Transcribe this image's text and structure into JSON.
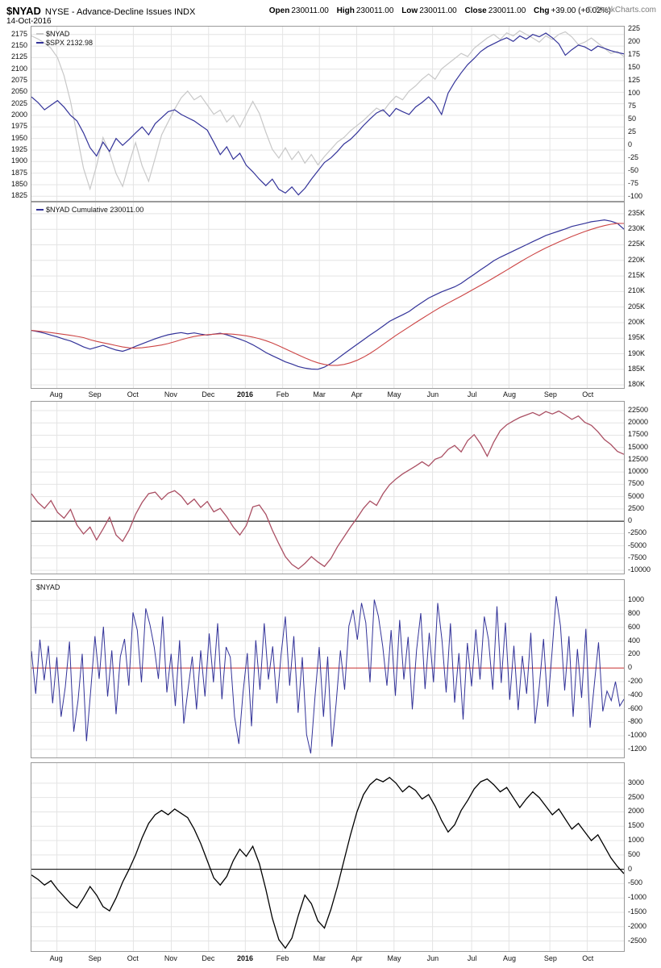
{
  "header": {
    "symbol": "$NYAD",
    "description": "NYSE - Advance-Decline Issues INDX",
    "date": "14-Oct-2016",
    "copyright": "© StockCharts.com",
    "quote": {
      "open_label": "Open",
      "open": "230011.00",
      "high_label": "High",
      "high": "230011.00",
      "low_label": "Low",
      "low": "230011.00",
      "close_label": "Close",
      "close": "230011.00",
      "chg_label": "Chg",
      "chg": "+39.00 (+0.02%)"
    }
  },
  "x_axis": {
    "labels": [
      {
        "t": "Aug"
      },
      {
        "t": "Sep"
      },
      {
        "t": "Oct"
      },
      {
        "t": "Nov"
      },
      {
        "t": "Dec"
      },
      {
        "t": "2016",
        "bold": true
      },
      {
        "t": "Feb"
      },
      {
        "t": "Mar"
      },
      {
        "t": "Apr"
      },
      {
        "t": "May"
      },
      {
        "t": "Jun"
      },
      {
        "t": "Jul"
      },
      {
        "t": "Aug"
      },
      {
        "t": "Sep"
      },
      {
        "t": "Oct"
      }
    ],
    "fractions": [
      0.043,
      0.108,
      0.172,
      0.236,
      0.299,
      0.361,
      0.424,
      0.486,
      0.549,
      0.612,
      0.677,
      0.743,
      0.806,
      0.875,
      0.938
    ]
  },
  "chart_data": [
    {
      "name": "price-overlay",
      "type": "line",
      "legend": [
        {
          "label": "$NYAD",
          "color": "#c8c8c8"
        },
        {
          "label": "$SPX 2132.98",
          "color": "#333399"
        }
      ],
      "axes": {
        "left": {
          "min": 1815,
          "max": 2192,
          "grid": true,
          "tick_values": [
            2175,
            2150,
            2125,
            2100,
            2075,
            2050,
            2025,
            2000,
            1975,
            1950,
            1925,
            1900,
            1875,
            1850,
            1825
          ],
          "tick_labels": [
            "2175",
            "2150",
            "2125",
            "2100",
            "2075",
            "2050",
            "2025",
            "2000",
            "1975",
            "1950",
            "1925",
            "1900",
            "1875",
            "1850",
            "1825"
          ]
        },
        "right": {
          "min": -108,
          "max": 230,
          "grid": false,
          "tick_values": [
            225,
            200,
            175,
            150,
            125,
            100,
            75,
            50,
            25,
            0,
            -25,
            -50,
            -75,
            -100
          ],
          "tick_labels": [
            "225",
            "200",
            "175",
            "150",
            "125",
            "100",
            "75",
            "50",
            "25",
            "0",
            "-25",
            "-50",
            "-75",
            "-100"
          ]
        }
      },
      "hlines": [],
      "series": [
        {
          "name": "NYAD",
          "axis": "right",
          "color": "#c8c8c8",
          "width": 1.2,
          "values": [
            212,
            206,
            198,
            188,
            170,
            135,
            85,
            20,
            -45,
            -85,
            -40,
            15,
            -15,
            -55,
            -80,
            -35,
            5,
            -40,
            -70,
            -25,
            20,
            45,
            70,
            92,
            105,
            88,
            96,
            78,
            60,
            68,
            45,
            58,
            35,
            60,
            85,
            62,
            25,
            -8,
            -25,
            -5,
            -28,
            -12,
            -35,
            -18,
            -38,
            -22,
            -8,
            6,
            15,
            28,
            38,
            48,
            60,
            72,
            65,
            82,
            95,
            88,
            105,
            115,
            128,
            138,
            128,
            148,
            158,
            168,
            178,
            172,
            188,
            198,
            208,
            215,
            205,
            218,
            212,
            222,
            215,
            208,
            200,
            212,
            205,
            215,
            220,
            210,
            195,
            200,
            208,
            198,
            188,
            178,
            182,
            172
          ]
        },
        {
          "name": "SPX",
          "axis": "left",
          "color": "#333399",
          "width": 1.2,
          "values": [
            2040,
            2028,
            2012,
            2022,
            2032,
            2018,
            2000,
            1988,
            1962,
            1930,
            1912,
            1942,
            1922,
            1950,
            1935,
            1948,
            1962,
            1975,
            1958,
            1982,
            1995,
            2008,
            2012,
            2002,
            1995,
            1988,
            1978,
            1968,
            1942,
            1915,
            1932,
            1905,
            1918,
            1892,
            1878,
            1862,
            1848,
            1862,
            1840,
            1832,
            1845,
            1828,
            1842,
            1862,
            1880,
            1898,
            1908,
            1922,
            1938,
            1948,
            1962,
            1978,
            1992,
            2005,
            2012,
            1998,
            2015,
            2008,
            2002,
            2018,
            2028,
            2040,
            2025,
            2002,
            2048,
            2072,
            2092,
            2110,
            2123,
            2138,
            2148,
            2155,
            2162,
            2168,
            2160,
            2172,
            2165,
            2175,
            2170,
            2178,
            2168,
            2155,
            2130,
            2142,
            2152,
            2148,
            2140,
            2150,
            2145,
            2140,
            2136,
            2133
          ]
        }
      ]
    },
    {
      "name": "nyad-cumulative",
      "type": "line",
      "legend": [
        {
          "label": "$NYAD Cumulative 230011.00",
          "color": "#333399"
        }
      ],
      "axes": {
        "right": {
          "min": 179000,
          "max": 238600,
          "grid": true,
          "tick_values": [
            235000,
            230000,
            225000,
            220000,
            215000,
            210000,
            205000,
            200000,
            195000,
            190000,
            185000,
            180000
          ],
          "tick_labels": [
            "235K",
            "230K",
            "225K",
            "220K",
            "215K",
            "210K",
            "205K",
            "200K",
            "195K",
            "190K",
            "185K",
            "180K"
          ]
        }
      },
      "hlines": [],
      "series": [
        {
          "name": "cumulative",
          "axis": "right",
          "color": "#333399",
          "width": 1.2,
          "values": [
            197500,
            197100,
            196600,
            196000,
            195400,
            194700,
            194100,
            193200,
            192200,
            191500,
            192100,
            192700,
            191900,
            191200,
            190800,
            191500,
            192400,
            193200,
            194000,
            194800,
            195500,
            196100,
            196500,
            196800,
            196400,
            196700,
            196300,
            196000,
            196300,
            196600,
            196100,
            195400,
            194700,
            193900,
            192900,
            191700,
            190400,
            189400,
            188400,
            187400,
            186700,
            185900,
            185400,
            185100,
            185000,
            185700,
            186900,
            188400,
            190000,
            191500,
            193000,
            194500,
            196000,
            197400,
            198900,
            200400,
            201500,
            202500,
            203600,
            205100,
            206500,
            207900,
            208900,
            209900,
            210700,
            211500,
            212600,
            214100,
            215500,
            217000,
            218400,
            219900,
            221000,
            222000,
            223000,
            224000,
            225000,
            226000,
            227000,
            228000,
            228700,
            229400,
            230100,
            230900,
            231400,
            231900,
            232400,
            232700,
            233000,
            232600,
            231900,
            230011
          ]
        },
        {
          "name": "cumulative-ma",
          "axis": "right",
          "color": "#cc4444",
          "width": 1.1,
          "derived": "sma",
          "window": 9,
          "source": 0
        }
      ]
    },
    {
      "name": "cumulative-oscillator",
      "type": "line",
      "axes": {
        "right": {
          "min": -10650,
          "max": 24300,
          "grid": true,
          "tick_values": [
            22500,
            20000,
            17500,
            15000,
            12500,
            10000,
            7500,
            5000,
            2500,
            0,
            -2500,
            -5000,
            -7500,
            -10000
          ],
          "tick_labels": [
            "22500",
            "20000",
            "17500",
            "15000",
            "12500",
            "10000",
            "7500",
            "5000",
            "2500",
            "0",
            "-2500",
            "-5000",
            "-7500",
            "-10000"
          ]
        }
      },
      "hlines": [
        {
          "v": 0,
          "color": "#000000",
          "w": 1
        }
      ],
      "series": [
        {
          "name": "oscillator",
          "axis": "right",
          "color": "#aa4f63",
          "width": 1.3,
          "values": [
            5600,
            3800,
            2600,
            4200,
            1800,
            600,
            2400,
            -800,
            -2600,
            -1200,
            -3800,
            -1600,
            800,
            -2800,
            -4100,
            -1800,
            1400,
            3800,
            5600,
            5900,
            4400,
            5700,
            6200,
            5100,
            3400,
            4500,
            2800,
            4000,
            1900,
            2600,
            900,
            -1200,
            -2800,
            -900,
            2900,
            3300,
            1400,
            -1800,
            -4600,
            -7200,
            -8800,
            -9700,
            -8600,
            -7200,
            -8300,
            -9200,
            -7600,
            -5200,
            -3200,
            -1200,
            600,
            2600,
            4100,
            3200,
            5600,
            7400,
            8600,
            9600,
            10400,
            11200,
            12100,
            11200,
            12600,
            13100,
            14600,
            15400,
            14100,
            16400,
            17600,
            15700,
            13200,
            16100,
            18400,
            19600,
            20400,
            21100,
            21600,
            22100,
            21500,
            22300,
            21800,
            22400,
            21600,
            20700,
            21400,
            20100,
            19500,
            18200,
            16600,
            15600,
            14200,
            13600
          ]
        }
      ]
    },
    {
      "name": "nyad-daily",
      "type": "line",
      "legend": [
        {
          "label": "$NYAD",
          "color": ""
        }
      ],
      "axes": {
        "right": {
          "min": -1320,
          "max": 1300,
          "grid": true,
          "tick_values": [
            1000,
            800,
            600,
            400,
            200,
            0,
            -200,
            -400,
            -600,
            -800,
            -1000,
            -1200
          ],
          "tick_labels": [
            "1000",
            "800",
            "600",
            "400",
            "200",
            "0",
            "-200",
            "-400",
            "-600",
            "-800",
            "-1000",
            "-1200"
          ]
        }
      },
      "hlines": [
        {
          "v": 0,
          "color": "#cc3333",
          "w": 1
        }
      ],
      "series": [
        {
          "name": "daily-advance-decline",
          "axis": "right",
          "color": "#333399",
          "width": 1,
          "values": [
            250,
            -380,
            420,
            -180,
            330,
            -520,
            160,
            -720,
            -280,
            390,
            -940,
            -480,
            210,
            -1080,
            -340,
            470,
            -160,
            610,
            -420,
            260,
            -680,
            170,
            430,
            -260,
            820,
            560,
            -210,
            880,
            640,
            310,
            -160,
            760,
            -360,
            210,
            -560,
            410,
            -820,
            -310,
            170,
            -610,
            260,
            -420,
            510,
            -210,
            660,
            -460,
            310,
            160,
            -720,
            -1120,
            -360,
            220,
            -860,
            410,
            -320,
            660,
            -170,
            320,
            -520,
            210,
            760,
            -260,
            470,
            -660,
            160,
            -980,
            -1260,
            -420,
            310,
            -720,
            170,
            -1160,
            -520,
            260,
            -320,
            620,
            860,
            420,
            960,
            670,
            -210,
            1010,
            760,
            320,
            -260,
            560,
            -410,
            710,
            -170,
            460,
            -610,
            270,
            810,
            -310,
            520,
            -210,
            960,
            410,
            -360,
            660,
            -510,
            220,
            -760,
            370,
            -270,
            570,
            -170,
            760,
            420,
            -320,
            910,
            -220,
            670,
            -470,
            330,
            -620,
            180,
            -380,
            520,
            -820,
            -270,
            430,
            -570,
            230,
            1060,
            620,
            -330,
            470,
            -720,
            280,
            -440,
            580,
            -880,
            -240,
            380,
            -640,
            -340,
            -480,
            -200,
            -560,
            -460
          ]
        }
      ]
    },
    {
      "name": "smoothed-breadth",
      "type": "line",
      "axes": {
        "right": {
          "min": -2850,
          "max": 3700,
          "grid": true,
          "tick_values": [
            3000,
            2500,
            2000,
            1500,
            1000,
            500,
            0,
            -500,
            -1000,
            -1500,
            -2000,
            -2500
          ],
          "tick_labels": [
            "3000",
            "2500",
            "2000",
            "1500",
            "1000",
            "500",
            "0",
            "-500",
            "-1000",
            "-1500",
            "-2000",
            "-2500"
          ]
        }
      },
      "hlines": [
        {
          "v": 0,
          "color": "#000000",
          "w": 1
        }
      ],
      "series": [
        {
          "name": "smoothed",
          "axis": "right",
          "color": "#000000",
          "width": 1.3,
          "values": [
            -200,
            -350,
            -550,
            -400,
            -700,
            -950,
            -1200,
            -1350,
            -1000,
            -600,
            -900,
            -1300,
            -1450,
            -1000,
            -450,
            0,
            500,
            1100,
            1600,
            1900,
            2050,
            1900,
            2100,
            1950,
            1800,
            1400,
            900,
            300,
            -300,
            -550,
            -250,
            300,
            700,
            450,
            800,
            200,
            -700,
            -1700,
            -2450,
            -2750,
            -2400,
            -1600,
            -900,
            -1200,
            -1800,
            -2050,
            -1400,
            -600,
            300,
            1200,
            2000,
            2600,
            2950,
            3150,
            3050,
            3200,
            3000,
            2700,
            2900,
            2750,
            2450,
            2600,
            2200,
            1700,
            1300,
            1550,
            2050,
            2400,
            2800,
            3050,
            3150,
            2950,
            2700,
            2850,
            2500,
            2150,
            2450,
            2700,
            2500,
            2200,
            1900,
            2100,
            1750,
            1400,
            1600,
            1300,
            1000,
            1200,
            800,
            400,
            100,
            -150
          ]
        }
      ]
    }
  ]
}
